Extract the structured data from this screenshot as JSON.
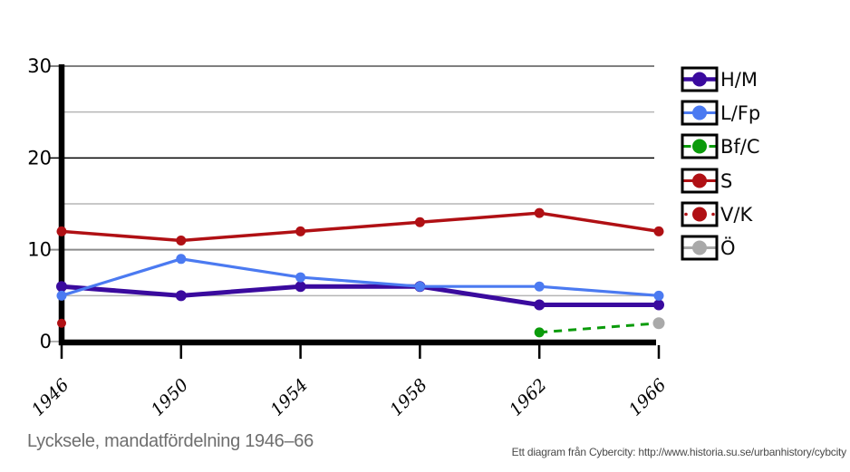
{
  "figure": {
    "title": "Lycksele, mandatfördelning 1946–66",
    "attribution": "Ett diagram från Cybercity: http://www.historia.su.se/urbanhistory/cybcity",
    "background_color": "#ffffff"
  },
  "chart_data": {
    "type": "line",
    "title": "Lycksele, mandatfördelning 1946–66",
    "xlabel": "",
    "ylabel": "",
    "x_labels": [
      "1946",
      "1950",
      "1954",
      "1958",
      "1962",
      "1966"
    ],
    "y_tick_labels": [
      "0",
      "10",
      "20",
      "30"
    ],
    "y_ticks": [
      0,
      10,
      20,
      30
    ],
    "minor_gridlines": [
      5,
      15,
      25
    ],
    "ylim": [
      0,
      30
    ],
    "grid": true,
    "legend_position": "right",
    "series": [
      {
        "name": "H/M",
        "color": "#3a0a9e",
        "style": "solid",
        "width": 5,
        "dot_r": 6,
        "values": [
          6,
          5,
          6,
          6,
          4,
          4
        ]
      },
      {
        "name": "L/Fp",
        "color": "#4b7af1",
        "style": "solid",
        "width": 3.2,
        "dot_r": 5.5,
        "values": [
          5,
          9,
          7,
          6,
          6,
          5
        ]
      },
      {
        "name": "Bf/C",
        "color": "#0b9b0b",
        "style": "dashed",
        "width": 3,
        "dot_r": 5.5,
        "values": [
          null,
          null,
          null,
          null,
          1,
          2
        ]
      },
      {
        "name": "S",
        "color": "#b01014",
        "style": "solid",
        "width": 3.5,
        "dot_r": 5.5,
        "values": [
          12,
          11,
          12,
          13,
          14,
          12
        ]
      },
      {
        "name": "V/K",
        "color": "#b01014",
        "style": "dotted",
        "width": 3,
        "dot_r": 5,
        "values": [
          2,
          null,
          null,
          null,
          null,
          null
        ]
      },
      {
        "name": "Ö",
        "color": "#a9a9a9",
        "style": "solid",
        "width": 3,
        "dot_r": 6.5,
        "values": [
          null,
          null,
          null,
          null,
          null,
          2
        ]
      }
    ],
    "colors": {
      "axis": "#000000",
      "major_gridline_30": "#7f7f7f",
      "major_gridline_20": "#000000",
      "major_gridline_10": "#8a8a8a",
      "minor_gridline": "#b5b5b5",
      "tick_label": "#000000",
      "legend_label": "#0a0a0a",
      "legend_box_border": "#000000",
      "title_text": "#6e6e6e",
      "attribution_text": "#4a4a4a"
    }
  }
}
